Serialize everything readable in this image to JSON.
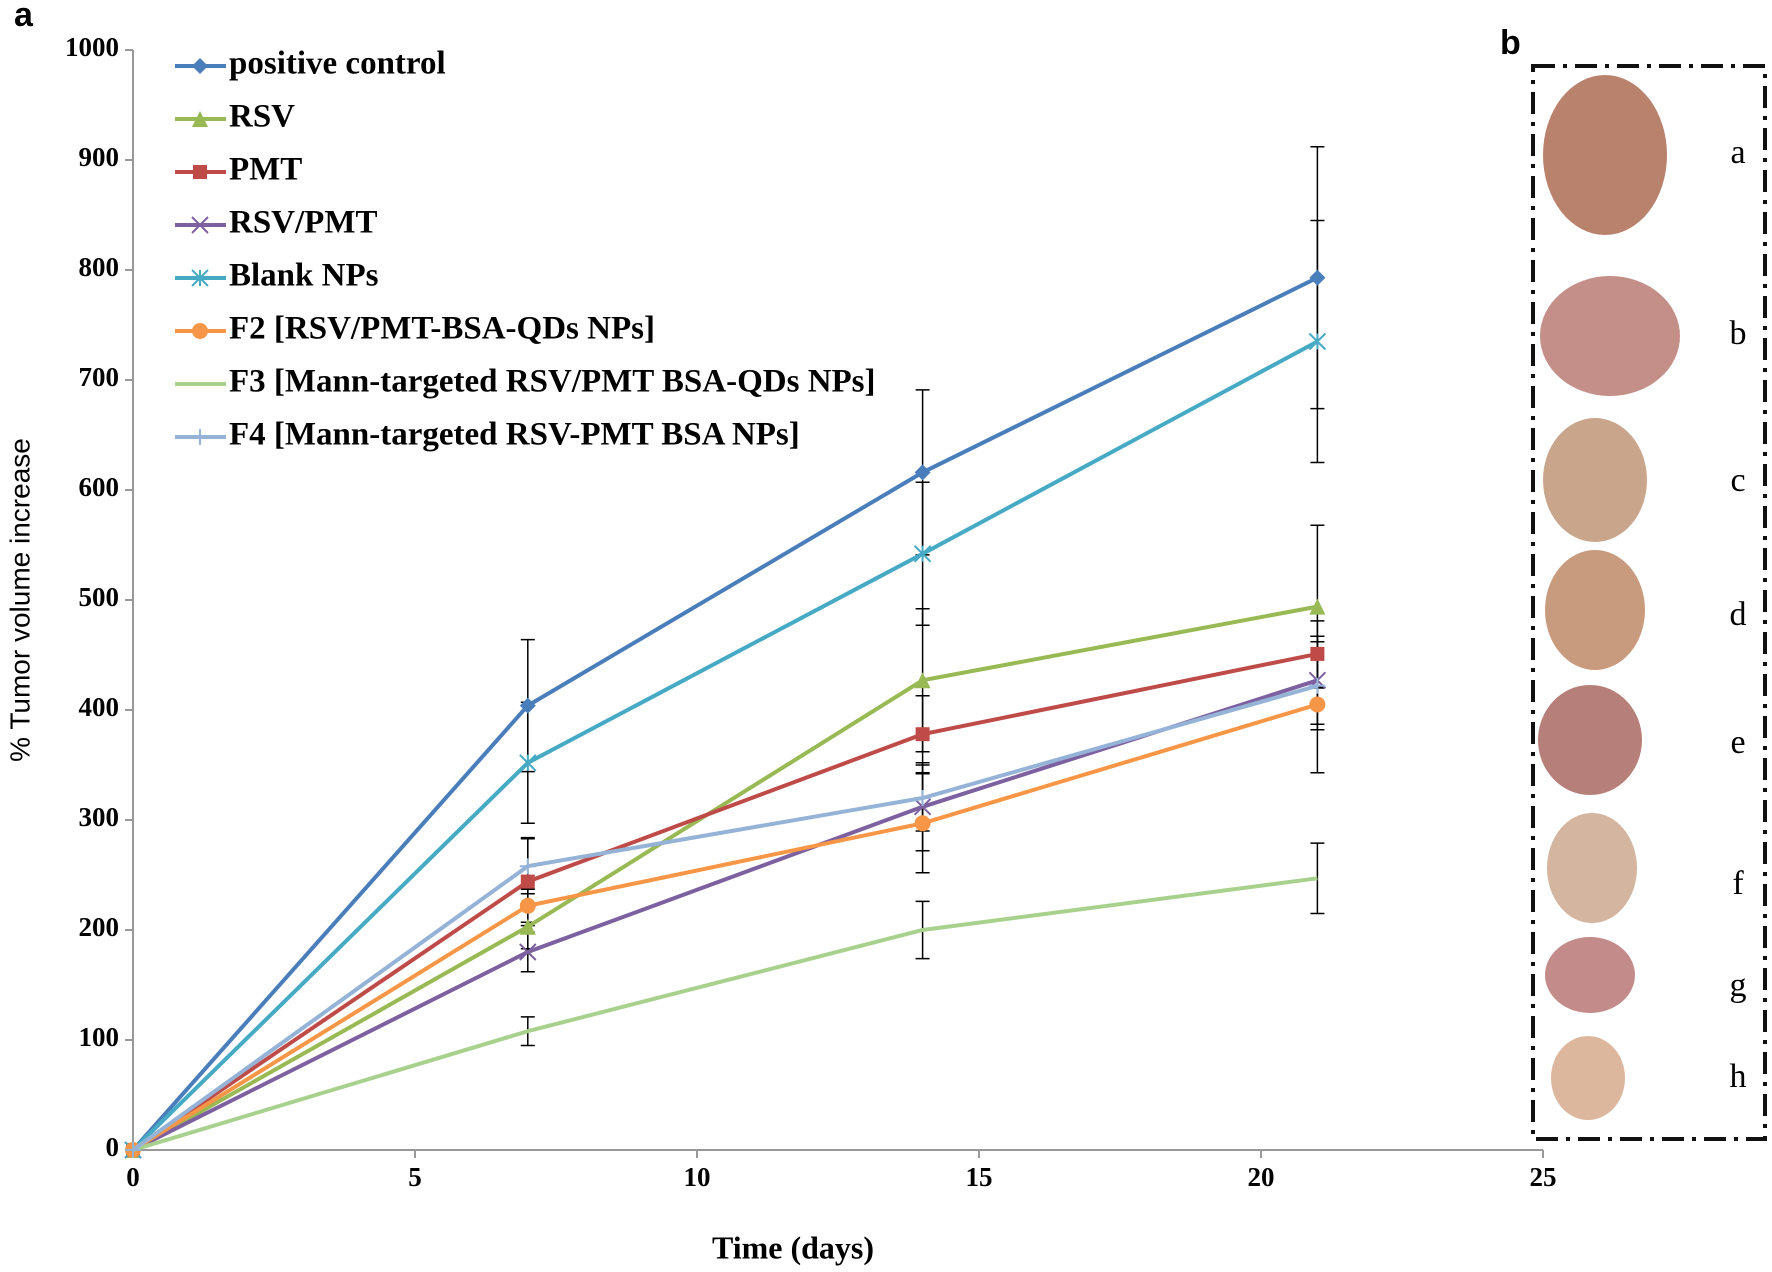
{
  "panel_a_label": "a",
  "panel_b": {
    "label": "b",
    "items": [
      "a",
      "b",
      "c",
      "d",
      "e",
      "f",
      "g",
      "h"
    ]
  },
  "chart_data": {
    "type": "line",
    "x_label": "Time (days)",
    "y_label": "% Tumor volume increase",
    "x": [
      0,
      7,
      14,
      21
    ],
    "xlim": [
      0,
      25
    ],
    "xticks": [
      0,
      5,
      10,
      15,
      20,
      25
    ],
    "ylim": [
      0,
      1000
    ],
    "yticks": [
      0,
      100,
      200,
      300,
      400,
      500,
      600,
      700,
      800,
      900,
      1000
    ],
    "grid": false,
    "legend": "upper left",
    "series": [
      {
        "name": "positive control",
        "color": "#4a7ebb",
        "marker": "diamond",
        "values": [
          0,
          404,
          616,
          793
        ],
        "errors": [
          null,
          60,
          75,
          119
        ]
      },
      {
        "name": "RSV",
        "color": "#98b954",
        "marker": "triangle",
        "values": [
          0,
          203,
          427,
          494
        ],
        "errors": [
          null,
          20,
          65,
          74
        ]
      },
      {
        "name": "PMT",
        "color": "#be4b48",
        "marker": "square",
        "values": [
          0,
          244,
          378,
          451
        ],
        "errors": [
          null,
          40,
          35,
          30
        ]
      },
      {
        "name": "RSV/PMT",
        "color": "#7d60a0",
        "marker": "x",
        "values": [
          0,
          180,
          312,
          427
        ],
        "errors": [
          null,
          18,
          40,
          40
        ]
      },
      {
        "name": "Blank NPs",
        "color": "#46aac5",
        "marker": "star",
        "values": [
          0,
          352,
          542,
          735
        ],
        "errors": [
          null,
          55,
          65,
          110
        ]
      },
      {
        "name": "F2 [RSV/PMT-BSA-QDs NPs]",
        "color": "#f79646",
        "marker": "circle",
        "values": [
          0,
          222,
          297,
          405
        ],
        "errors": [
          null,
          15,
          45,
          62
        ]
      },
      {
        "name": "F3 [Mann-targeted RSV/PMT BSA-QDs NPs]",
        "color": "#a9d18e",
        "marker": "none",
        "values": [
          0,
          108,
          200,
          247
        ],
        "errors": [
          null,
          13,
          26,
          32
        ]
      },
      {
        "name": "F4 [Mann-targeted RSV-PMT BSA NPs]",
        "color": "#95b3d7",
        "marker": "plus",
        "values": [
          0,
          258,
          320,
          422
        ],
        "errors": [
          null,
          25,
          30,
          40
        ]
      }
    ]
  }
}
